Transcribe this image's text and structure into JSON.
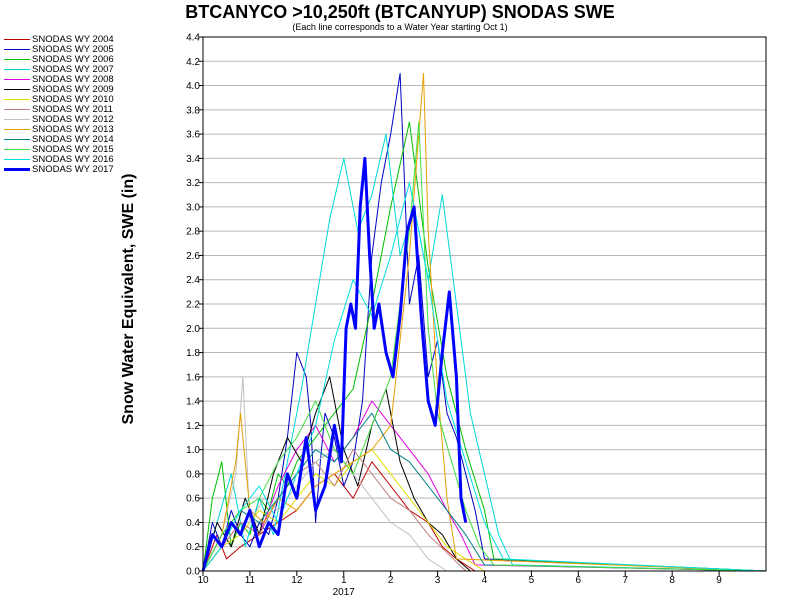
{
  "chart_data": {
    "type": "line",
    "title": "BTCANYCO >10,250ft (BTCANYUP) SNODAS SWE",
    "subtitle": "(Each line corresponds to a Water Year starting Oct 1)",
    "ylabel": "Snow Water Equivalent, SWE (in)",
    "xlabel": "",
    "ylim": [
      0,
      4.4
    ],
    "yticks": [
      "0.0",
      "0.2",
      "0.4",
      "0.6",
      "0.8",
      "1.0",
      "1.2",
      "1.4",
      "1.6",
      "1.8",
      "2.0",
      "2.2",
      "2.4",
      "2.6",
      "2.8",
      "3.0",
      "3.2",
      "3.4",
      "3.6",
      "3.8",
      "4.0",
      "4.2",
      "4.4"
    ],
    "xlim": [
      0,
      12
    ],
    "xticks": [
      "10",
      "11",
      "12",
      "1",
      "2",
      "3",
      "4",
      "5",
      "6",
      "7",
      "8",
      "9"
    ],
    "xtick_year": "2017",
    "grid": true,
    "legend_placement": "left",
    "series": [
      {
        "name": "SNODAS WY 2004",
        "color": "#c00000",
        "width": 1,
        "x": [
          0,
          0.1,
          0.3,
          0.5,
          0.8,
          1.2,
          1.6,
          2,
          2.4,
          2.8,
          3.2,
          3.6,
          4,
          4.4,
          4.8,
          5.1,
          5.4,
          5.6,
          5.8,
          12
        ],
        "y": [
          0,
          0.1,
          0.3,
          0.1,
          0.2,
          0.3,
          0.4,
          0.5,
          0.7,
          0.8,
          0.6,
          0.9,
          0.7,
          0.5,
          0.4,
          0.2,
          0.1,
          0.05,
          0,
          0
        ]
      },
      {
        "name": "SNODAS WY 2005",
        "color": "#0000c0",
        "width": 1,
        "x": [
          0,
          0.2,
          0.4,
          0.6,
          0.8,
          1.0,
          1.2,
          1.4,
          1.6,
          1.8,
          2.0,
          2.2,
          2.3,
          2.4,
          2.5,
          2.6,
          2.8,
          3.0,
          3.2,
          3.4,
          3.6,
          3.8,
          4.0,
          4.2,
          4.4,
          4.6,
          4.8,
          5.0,
          5.2,
          5.4,
          5.6,
          5.8,
          6.0,
          12
        ],
        "y": [
          0,
          0.4,
          0.2,
          0.5,
          0.3,
          0.2,
          0.4,
          0.3,
          0.6,
          1.1,
          1.8,
          1.6,
          1.2,
          0.4,
          0.9,
          1.3,
          1.1,
          0.7,
          0.9,
          1.4,
          2.6,
          3.2,
          3.6,
          4.1,
          2.2,
          2.6,
          1.6,
          1.9,
          1.3,
          1.1,
          0.8,
          0.5,
          0.1,
          0
        ]
      },
      {
        "name": "SNODAS WY 2006",
        "color": "#00c000",
        "width": 1,
        "x": [
          0,
          0.2,
          0.4,
          0.6,
          0.8,
          1.0,
          1.2,
          1.4,
          1.6,
          1.8,
          2.0,
          2.4,
          2.8,
          3.2,
          3.6,
          4.0,
          4.4,
          4.8,
          5.2,
          5.6,
          6.0,
          6.2,
          12
        ],
        "y": [
          0,
          0.6,
          0.9,
          0.2,
          0.4,
          0.3,
          0.6,
          0.5,
          0.8,
          0.7,
          0.9,
          1.1,
          1.3,
          1.5,
          2.2,
          3.0,
          3.7,
          2.5,
          1.6,
          1.0,
          0.5,
          0.1,
          0
        ]
      },
      {
        "name": "SNODAS WY 2007",
        "color": "#00d8d8",
        "width": 1,
        "x": [
          0,
          0.3,
          0.6,
          0.9,
          1.2,
          1.5,
          1.8,
          2.1,
          2.4,
          2.7,
          3.0,
          3.3,
          3.6,
          3.9,
          4.2,
          4.5,
          4.8,
          5.1,
          5.4,
          5.7,
          6.0,
          6.3,
          6.6,
          12
        ],
        "y": [
          0,
          0.4,
          0.8,
          0.2,
          0.6,
          0.3,
          0.9,
          1.5,
          2.2,
          2.9,
          3.4,
          2.8,
          3.1,
          3.6,
          2.6,
          3.0,
          2.4,
          3.1,
          2.2,
          1.3,
          0.8,
          0.3,
          0.05,
          0
        ]
      },
      {
        "name": "SNODAS WY 2008",
        "color": "#e000e0",
        "width": 1,
        "x": [
          0,
          0.4,
          0.8,
          1.2,
          1.6,
          2.0,
          2.4,
          2.8,
          3.2,
          3.6,
          4.0,
          4.4,
          4.8,
          5.2,
          5.5,
          5.8,
          12
        ],
        "y": [
          0,
          0.2,
          0.4,
          0.3,
          0.7,
          1.0,
          1.2,
          0.9,
          1.1,
          1.4,
          1.2,
          1.0,
          0.8,
          0.5,
          0.3,
          0.05,
          0
        ]
      },
      {
        "name": "SNODAS WY 2009",
        "color": "#000000",
        "width": 1,
        "x": [
          0,
          0.3,
          0.6,
          0.9,
          1.2,
          1.5,
          1.8,
          2.1,
          2.4,
          2.7,
          3.0,
          3.3,
          3.6,
          3.9,
          4.2,
          4.5,
          4.8,
          5.1,
          5.4,
          5.7,
          12
        ],
        "y": [
          0,
          0.4,
          0.2,
          0.6,
          0.3,
          0.8,
          1.1,
          0.9,
          1.3,
          1.6,
          1.0,
          0.7,
          1.2,
          1.5,
          0.9,
          0.6,
          0.4,
          0.3,
          0.1,
          0,
          0
        ]
      },
      {
        "name": "SNODAS WY 2010",
        "color": "#e0e000",
        "width": 1,
        "x": [
          0,
          0.4,
          0.8,
          1.2,
          1.6,
          2.0,
          2.4,
          2.8,
          3.2,
          3.6,
          4.0,
          4.4,
          4.8,
          5.2,
          5.6,
          6.0,
          12
        ],
        "y": [
          0,
          0.2,
          0.3,
          0.5,
          0.4,
          0.6,
          0.8,
          0.7,
          0.9,
          1.0,
          0.8,
          0.6,
          0.4,
          0.2,
          0.1,
          0,
          0
        ]
      },
      {
        "name": "SNODAS WY 2011",
        "color": "#c08080",
        "width": 1,
        "x": [
          0,
          0.4,
          0.8,
          1.2,
          1.6,
          2.0,
          2.4,
          2.8,
          3.2,
          3.6,
          4.0,
          4.4,
          4.8,
          5.2,
          5.6,
          12
        ],
        "y": [
          0,
          0.2,
          0.4,
          0.3,
          0.6,
          0.8,
          0.9,
          0.7,
          1.0,
          0.8,
          0.6,
          0.5,
          0.3,
          0.15,
          0,
          0
        ]
      },
      {
        "name": "SNODAS WY 2012",
        "color": "#c0c0c0",
        "width": 1,
        "x": [
          0,
          0.4,
          0.7,
          0.85,
          1.0,
          1.3,
          1.6,
          2.0,
          2.4,
          2.8,
          3.2,
          3.6,
          4.0,
          4.4,
          4.8,
          5.2,
          12
        ],
        "y": [
          0,
          0.3,
          0.8,
          1.6,
          0.4,
          0.6,
          0.5,
          0.7,
          0.9,
          1.0,
          0.8,
          0.6,
          0.4,
          0.3,
          0.1,
          0,
          0
        ]
      },
      {
        "name": "SNODAS WY 2013",
        "color": "#e8a000",
        "width": 1,
        "x": [
          0,
          0.4,
          0.7,
          0.8,
          1.0,
          1.3,
          1.6,
          2.0,
          2.4,
          2.8,
          3.2,
          3.6,
          4.0,
          4.4,
          4.6,
          4.7,
          4.8,
          5.0,
          5.2,
          5.4,
          12
        ],
        "y": [
          0,
          0.3,
          0.9,
          1.3,
          0.5,
          0.4,
          0.6,
          0.5,
          0.7,
          0.8,
          0.9,
          1.0,
          1.2,
          2.6,
          3.6,
          4.1,
          2.8,
          1.5,
          0.6,
          0.1,
          0
        ]
      },
      {
        "name": "SNODAS WY 2014",
        "color": "#008080",
        "width": 1,
        "x": [
          0,
          0.4,
          0.8,
          1.2,
          1.6,
          2.0,
          2.4,
          2.8,
          3.2,
          3.6,
          4.0,
          4.4,
          4.8,
          5.2,
          5.6,
          6.0,
          12
        ],
        "y": [
          0,
          0.3,
          0.5,
          0.4,
          0.6,
          0.8,
          1.0,
          0.9,
          1.1,
          1.3,
          1.0,
          0.9,
          0.7,
          0.5,
          0.3,
          0.05,
          0
        ]
      },
      {
        "name": "SNODAS WY 2015",
        "color": "#40e040",
        "width": 1,
        "x": [
          0,
          0.4,
          0.8,
          1.2,
          1.6,
          2.0,
          2.4,
          2.8,
          3.2,
          3.6,
          4.0,
          4.4,
          4.6,
          4.8,
          5.0,
          5.3,
          5.6,
          5.9,
          6.2,
          12
        ],
        "y": [
          0,
          0.3,
          0.5,
          0.6,
          0.9,
          1.1,
          1.4,
          1.0,
          0.8,
          1.2,
          1.6,
          2.8,
          3.7,
          2.0,
          1.3,
          0.9,
          0.5,
          0.2,
          0.05,
          0
        ]
      },
      {
        "name": "SNODAS WY 2016",
        "color": "#00e0e0",
        "width": 1,
        "x": [
          0,
          0.4,
          0.8,
          1.2,
          1.6,
          2.0,
          2.4,
          2.8,
          3.2,
          3.6,
          4.0,
          4.4,
          4.8,
          5.2,
          5.6,
          6.0,
          6.4,
          12
        ],
        "y": [
          0,
          0.2,
          0.5,
          0.7,
          0.4,
          0.8,
          1.2,
          1.9,
          2.4,
          2.1,
          2.6,
          3.2,
          2.4,
          1.4,
          0.9,
          0.4,
          0.1,
          0
        ]
      },
      {
        "name": "SNODAS WY 2017",
        "color": "#0000ff",
        "width": 3,
        "x": [
          0,
          0.2,
          0.4,
          0.6,
          0.8,
          1.0,
          1.2,
          1.4,
          1.6,
          1.8,
          2.0,
          2.2,
          2.4,
          2.6,
          2.8,
          2.95,
          3.05,
          3.15,
          3.25,
          3.35,
          3.45,
          3.55,
          3.65,
          3.75,
          3.9,
          4.05,
          4.2,
          4.35,
          4.5,
          4.65,
          4.8,
          4.95,
          5.1,
          5.25,
          5.4,
          5.5,
          5.6
        ],
        "y": [
          0,
          0.3,
          0.2,
          0.4,
          0.3,
          0.5,
          0.2,
          0.4,
          0.3,
          0.8,
          0.6,
          1.1,
          0.5,
          0.7,
          1.2,
          0.9,
          2.0,
          2.2,
          2.0,
          3.0,
          3.4,
          2.6,
          2.0,
          2.2,
          1.8,
          1.6,
          2.1,
          2.8,
          3.0,
          2.1,
          1.4,
          1.2,
          1.8,
          2.3,
          1.6,
          0.6,
          0.4
        ]
      }
    ]
  }
}
